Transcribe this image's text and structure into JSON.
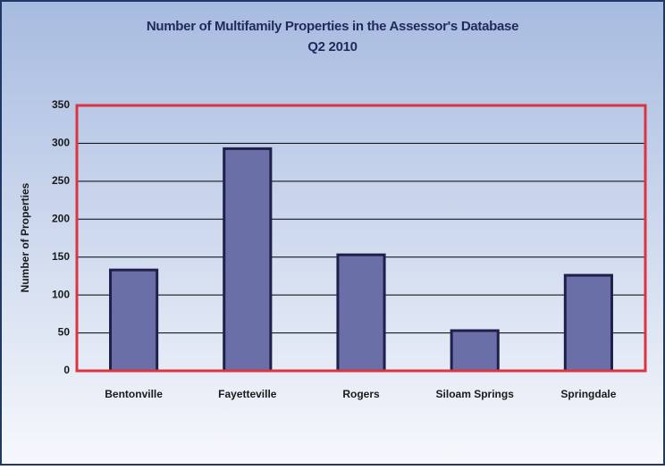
{
  "chart_data": {
    "type": "bar",
    "title": "Number of Multifamily Properties in the Assessor's Database",
    "subtitle": "Q2 2010",
    "y_label": "Number of Properties",
    "categories": [
      "Bentonville",
      "Fayetteville",
      "Rogers",
      "Siloam Springs",
      "Springdale"
    ],
    "values": [
      133,
      293,
      153,
      53,
      126
    ],
    "color": "#6b6fa8",
    "ylim": [
      0,
      350
    ],
    "yticks": [
      0,
      50,
      100,
      150,
      200,
      250,
      300,
      350
    ],
    "grid": true
  }
}
